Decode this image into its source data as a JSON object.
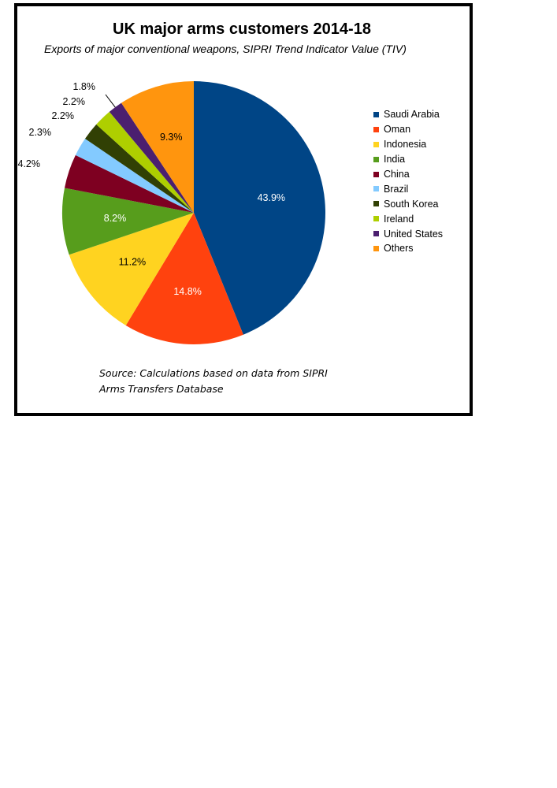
{
  "chart_data": {
    "type": "pie",
    "title": "UK major arms customers 2014-18",
    "subtitle": "Exports of major conventional weapons, SIPRI Trend Indicator Value (TIV)",
    "source_note": "Source: Calculations based on data from SIPRI Arms Transfers Database",
    "legend_position": "right",
    "slices": [
      {
        "name": "Saudi Arabia",
        "value": 43.9,
        "label": "43.9%",
        "color": "#004586"
      },
      {
        "name": "Oman",
        "value": 14.8,
        "label": "14.8%",
        "color": "#ff420e"
      },
      {
        "name": "Indonesia",
        "value": 11.2,
        "label": "11.2%",
        "color": "#ffd320"
      },
      {
        "name": "India",
        "value": 8.2,
        "label": "8.2%",
        "color": "#579d1c"
      },
      {
        "name": "China",
        "value": 4.2,
        "label": "4.2%",
        "color": "#7e0021"
      },
      {
        "name": "Brazil",
        "value": 2.3,
        "label": "2.3%",
        "color": "#83caff"
      },
      {
        "name": "South Korea",
        "value": 2.2,
        "label": "2.2%",
        "color": "#314004"
      },
      {
        "name": "Ireland",
        "value": 2.2,
        "label": "2.2%",
        "color": "#aecf00"
      },
      {
        "name": "United States",
        "value": 1.8,
        "label": "1.8%",
        "color": "#4b1f6f"
      },
      {
        "name": "Others",
        "value": 9.3,
        "label": "9.3%",
        "color": "#ff950e"
      }
    ]
  }
}
